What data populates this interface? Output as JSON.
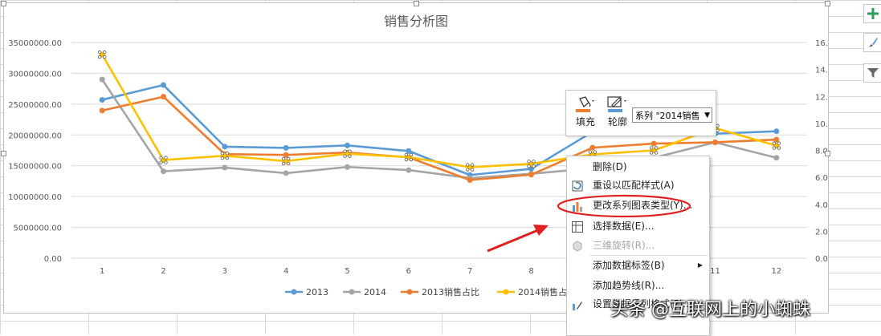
{
  "chart_data": {
    "type": "line",
    "title": "销售分析图",
    "categories": [
      "1",
      "2",
      "3",
      "4",
      "5",
      "6",
      "7",
      "8",
      "9",
      "10",
      "11",
      "12"
    ],
    "y_left_ticks": [
      "35000000.00",
      "30000000.00",
      "25000000.00",
      "20000000.00",
      "15000000.00",
      "10000000.00",
      "5000000.00",
      "0.00"
    ],
    "y_right_ticks": [
      "16.00%",
      "14.00%",
      "12.00%",
      "10.00%",
      "8.00%",
      "6.00%",
      "4.00%",
      "2.00%",
      "0.00%"
    ],
    "ylim": [
      0,
      35000000
    ],
    "ylim_right": [
      0,
      0.16
    ],
    "grid": true,
    "legend_position": "bottom",
    "series": [
      {
        "name": "2013",
        "axis": "left",
        "color": "#5b9bd5",
        "marker": "circle",
        "values": [
          25700000,
          28100000,
          18100000,
          17900000,
          18300000,
          17400000,
          13500000,
          14500000,
          20500000,
          21000000,
          20200000,
          20600000
        ]
      },
      {
        "name": "2014",
        "axis": "left",
        "color": "#a5a5a5",
        "marker": "circle",
        "values": [
          29000000,
          14100000,
          14700000,
          13800000,
          14800000,
          14300000,
          13000000,
          13700000,
          14600000,
          16300000,
          18800000,
          16300000
        ]
      },
      {
        "name": "2013销售占比",
        "axis": "right",
        "color": "#ed7d31",
        "marker": "circle",
        "values": [
          0.1095,
          0.1198,
          0.0772,
          0.0766,
          0.0784,
          0.0748,
          0.058,
          0.062,
          0.082,
          0.085,
          0.086,
          0.088
        ]
      },
      {
        "name": "2014销售占比",
        "axis": "right",
        "color": "#ffc000",
        "marker": "cross-selected",
        "values": [
          0.151,
          0.0728,
          0.076,
          0.072,
          0.0775,
          0.075,
          0.0675,
          0.07,
          0.077,
          0.08,
          0.0965,
          0.0835
        ]
      }
    ]
  },
  "side_buttons": {
    "add_element_icon": "plus-icon",
    "style_icon": "brush-icon",
    "filter_icon": "funnel-icon"
  },
  "mini_toolbar": {
    "fill_label": "填充",
    "outline_label": "轮廓",
    "series_select": "系列 \"2014销售"
  },
  "context_menu": {
    "items": [
      {
        "label": "删除(D)",
        "icon": "",
        "disabled": false
      },
      {
        "label": "重设以匹配样式(A)",
        "icon": "reset-style-icon",
        "disabled": false
      },
      {
        "label": "更改系列图表类型(Y)...",
        "icon": "chart-type-icon",
        "disabled": false,
        "highlight": true
      },
      {
        "label": "选择数据(E)...",
        "icon": "select-data-icon",
        "disabled": false
      },
      {
        "label": "三维旋转(R)...",
        "icon": "3d-rotate-icon",
        "disabled": true
      },
      {
        "label": "添加数据标签(B)",
        "icon": "",
        "disabled": false,
        "submenu": true
      },
      {
        "label": "添加趋势线(R)...",
        "icon": "",
        "disabled": false
      },
      {
        "label": "设置数据系列格式(F)...",
        "icon": "format-series-icon",
        "disabled": false
      }
    ]
  },
  "annotation": {
    "highlight_color": "#e02020",
    "arrow_color": "#e02020"
  },
  "watermark": "头条 @互联网上的小蜘蛛"
}
